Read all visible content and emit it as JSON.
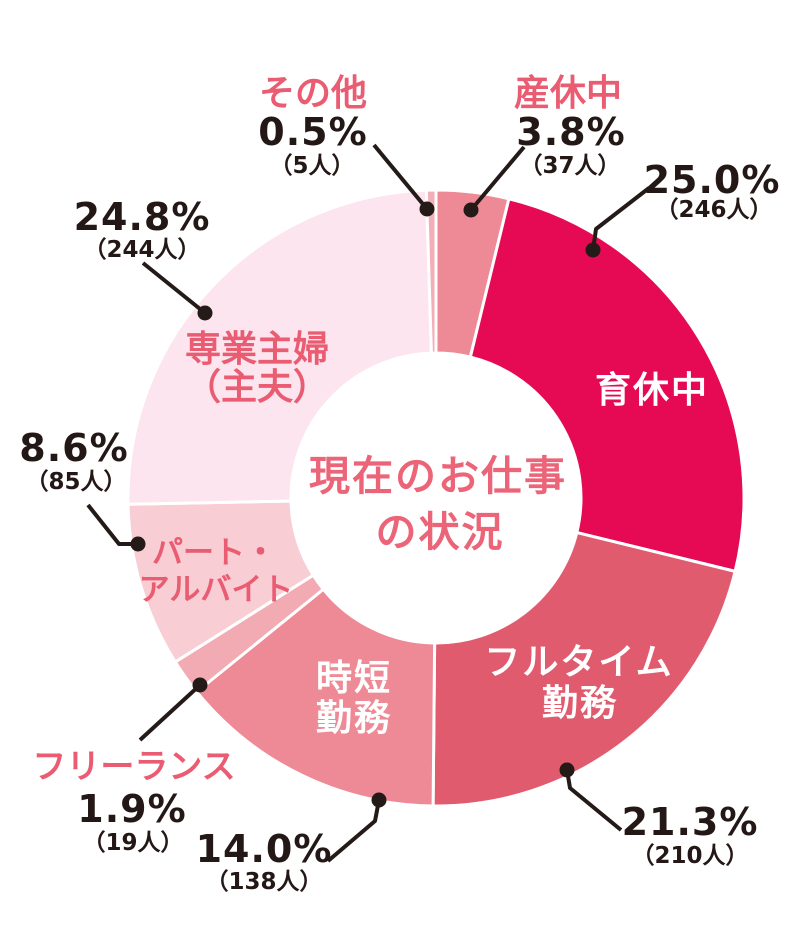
{
  "title": "現在のお仕事の状況",
  "center_title": {
    "line1": "現在のお仕事",
    "line2": "の状況"
  },
  "chart_data": {
    "type": "pie",
    "donut": true,
    "title": "現在のお仕事の状況",
    "start_angle_deg": 0,
    "direction": "clockwise",
    "value_unit": "人",
    "segments": [
      {
        "label": "産休中",
        "percent": 3.8,
        "count": 37,
        "color": "#ee8a96"
      },
      {
        "label": "育休中",
        "percent": 25.0,
        "count": 246,
        "color": "#e60a54"
      },
      {
        "label": "フルタイム勤務",
        "percent": 21.3,
        "count": 210,
        "color": "#e05b6e"
      },
      {
        "label": "時短勤務",
        "percent": 14.0,
        "count": 138,
        "color": "#ee8a96"
      },
      {
        "label": "フリーランス",
        "percent": 1.9,
        "count": 19,
        "color": "#f2aab3"
      },
      {
        "label": "パート・アルバイト",
        "percent": 8.6,
        "count": 85,
        "color": "#f8cdd4"
      },
      {
        "label": "専業主婦（主夫）",
        "percent": 24.8,
        "count": 244,
        "color": "#fce5ee"
      },
      {
        "label": "その他",
        "percent": 0.5,
        "count": 5,
        "color": "#f3afb8"
      }
    ]
  },
  "callouts": {
    "sonota": {
      "name": "その他",
      "pct": "0.5%",
      "count": "（5人）"
    },
    "sankyuu": {
      "name": "産休中",
      "pct": "3.8%",
      "count": "（37人）"
    },
    "ikukyuu": {
      "name": "育休中",
      "pct": "25.0%",
      "count": "（246人）"
    },
    "fulltime": {
      "name_line1": "フルタイム",
      "name_line2": "勤務",
      "pct": "21.3%",
      "count": "（210人）"
    },
    "jitan": {
      "name_line1": "時短",
      "name_line2": "勤務",
      "pct": "14.0%",
      "count": "（138人）"
    },
    "freelance": {
      "name": "フリーランス",
      "pct": "1.9%",
      "count": "（19人）"
    },
    "part": {
      "name_line1": "パート・",
      "name_line2": "アルバイト",
      "pct": "8.6%",
      "count": "（85人）"
    },
    "shufu": {
      "name_line1": "専業主婦",
      "name_line2": "（主夫）",
      "pct": "24.8%",
      "count": "（244人）"
    }
  },
  "colors": {
    "accent_label_text": "#e95c72",
    "center_title_text": "#eb6478",
    "number_text": "#231815",
    "on_segment_label_text": "#ffffff",
    "leader_line": "#241a17",
    "segment_gap_stroke": "#ffffff",
    "background": "#ffffff"
  }
}
